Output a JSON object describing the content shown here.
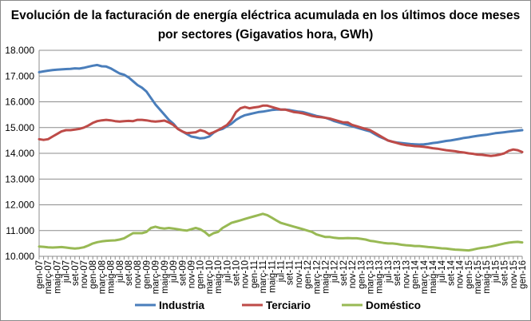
{
  "chart_data": {
    "type": "line",
    "title": "Evolución de la facturación de energía eléctrica acumulada en los últimos doce meses por sectores (Gigavatios hora, GWh)",
    "xlabel": "",
    "ylabel": "",
    "ylim": [
      10000,
      18000
    ],
    "yticks": [
      10000,
      11000,
      12000,
      13000,
      14000,
      15000,
      16000,
      17000,
      18000
    ],
    "ytick_labels": [
      "10.000",
      "11.000",
      "12.000",
      "13.000",
      "14.000",
      "15.000",
      "16.000",
      "17.000",
      "18.000"
    ],
    "grid": true,
    "legend_position": "bottom",
    "x": [
      "gen-07",
      "febr-07",
      "març-07",
      "abr-07",
      "maig-07",
      "juny-07",
      "jul-07",
      "ag-07",
      "set-07",
      "oct-07",
      "nov-07",
      "des-07",
      "gen-08",
      "febr-08",
      "març-08",
      "abr-08",
      "maig-08",
      "juny-08",
      "jul-08",
      "ag-08",
      "set-08",
      "oct-08",
      "nov-08",
      "des-08",
      "gen-09",
      "febr-09",
      "març-09",
      "abr-09",
      "maig-09",
      "juny-09",
      "jul-09",
      "ag-09",
      "set-09",
      "oct-09",
      "nov-09",
      "des-09",
      "gen-10",
      "febr-10",
      "març-10",
      "abr-10",
      "maig-10",
      "juny-10",
      "jul-10",
      "ag-10",
      "set-10",
      "oct-10",
      "nov-10",
      "des-10",
      "gen-11",
      "febr-11",
      "març-11",
      "abr-11",
      "maig-11",
      "juny-11",
      "jul-11",
      "ag-11",
      "set-11",
      "oct-11",
      "nov-11",
      "des-11",
      "gen-12",
      "febr-12",
      "març-12",
      "abr-12",
      "maig-12",
      "juny-12",
      "jul-12",
      "ag-12",
      "set-12",
      "oct-12",
      "nov-12",
      "des-12",
      "gen-13",
      "febr-13",
      "març-13",
      "abr-13",
      "maig-13",
      "juny-13",
      "jul-13",
      "ag-13",
      "set-13",
      "oct-13",
      "nov-13",
      "des-13",
      "gen-14",
      "febr-14",
      "març-14",
      "abr-14",
      "maig-14",
      "juny-14",
      "jul-14",
      "ag-14",
      "set-14",
      "oct-14",
      "nov-14",
      "des-14",
      "gen-15",
      "febr-15",
      "març-15",
      "abr-15",
      "maig-15",
      "juny-15",
      "jul-15",
      "ag-15",
      "set-15",
      "oct-15",
      "nov-15",
      "des-15",
      "gen-16"
    ],
    "x_tick_labels": [
      "gen-07",
      "març-07",
      "maig-07",
      "jul-07",
      "set-07",
      "nov-07",
      "gen-08",
      "març-08",
      "maig-08",
      "jul-08",
      "set-08",
      "nov-08",
      "gen-09",
      "març-09",
      "maig-09",
      "jul-09",
      "set-09",
      "nov-09",
      "gen-10",
      "març-10",
      "maig-10",
      "jul-10",
      "set-10",
      "nov-10",
      "gen-11",
      "març-11",
      "maig-11",
      "jul-11",
      "set-11",
      "nov-11",
      "gen-12",
      "març-12",
      "maig-12",
      "jul-12",
      "set-12",
      "nov-12",
      "gen-13",
      "març-13",
      "maig-13",
      "jul-13",
      "set-13",
      "nov-13",
      "gen-14",
      "març-14",
      "maig-14",
      "jul-14",
      "set-14",
      "nov-14",
      "gen-15",
      "març-15",
      "maig-15",
      "jul-15",
      "set-15",
      "nov-15",
      "gen-16"
    ],
    "series": [
      {
        "name": "Industria",
        "color": "#4a7ebb",
        "values": [
          17150,
          17180,
          17210,
          17230,
          17250,
          17260,
          17270,
          17280,
          17300,
          17290,
          17320,
          17360,
          17400,
          17430,
          17380,
          17370,
          17300,
          17200,
          17100,
          17050,
          16950,
          16800,
          16650,
          16550,
          16400,
          16150,
          15900,
          15700,
          15500,
          15300,
          15150,
          14950,
          14850,
          14750,
          14650,
          14620,
          14580,
          14600,
          14650,
          14800,
          14900,
          14950,
          15050,
          15150,
          15300,
          15400,
          15480,
          15520,
          15560,
          15600,
          15620,
          15650,
          15680,
          15700,
          15700,
          15700,
          15680,
          15650,
          15620,
          15600,
          15550,
          15500,
          15450,
          15420,
          15380,
          15320,
          15250,
          15200,
          15150,
          15100,
          15050,
          15000,
          14950,
          14900,
          14850,
          14750,
          14650,
          14580,
          14500,
          14450,
          14420,
          14400,
          14380,
          14360,
          14350,
          14340,
          14350,
          14370,
          14400,
          14420,
          14450,
          14480,
          14500,
          14530,
          14560,
          14600,
          14620,
          14650,
          14680,
          14700,
          14720,
          14750,
          14780,
          14800,
          14820,
          14840,
          14860,
          14880,
          14900
        ]
      },
      {
        "name": "Terciario",
        "color": "#be4b48",
        "values": [
          14550,
          14520,
          14550,
          14650,
          14750,
          14850,
          14900,
          14900,
          14920,
          14950,
          15000,
          15080,
          15180,
          15250,
          15280,
          15300,
          15280,
          15250,
          15230,
          15250,
          15260,
          15250,
          15300,
          15300,
          15280,
          15250,
          15230,
          15250,
          15270,
          15200,
          15100,
          14950,
          14850,
          14780,
          14800,
          14820,
          14900,
          14850,
          14750,
          14820,
          14900,
          15000,
          15100,
          15300,
          15600,
          15750,
          15800,
          15750,
          15780,
          15800,
          15850,
          15850,
          15800,
          15750,
          15700,
          15700,
          15650,
          15600,
          15580,
          15550,
          15500,
          15450,
          15420,
          15400,
          15380,
          15350,
          15300,
          15250,
          15200,
          15200,
          15100,
          15050,
          15000,
          14950,
          14900,
          14800,
          14700,
          14600,
          14500,
          14450,
          14400,
          14350,
          14320,
          14300,
          14280,
          14270,
          14250,
          14230,
          14200,
          14180,
          14150,
          14120,
          14100,
          14080,
          14050,
          14030,
          14000,
          13980,
          13950,
          13940,
          13920,
          13900,
          13920,
          13950,
          14000,
          14100,
          14150,
          14120,
          14050
        ]
      },
      {
        "name": "Doméstico",
        "color": "#98b954",
        "values": [
          10380,
          10370,
          10350,
          10340,
          10350,
          10360,
          10340,
          10320,
          10300,
          10320,
          10350,
          10420,
          10500,
          10550,
          10580,
          10600,
          10610,
          10620,
          10650,
          10700,
          10800,
          10900,
          10900,
          10900,
          10950,
          11100,
          11150,
          11100,
          11080,
          11100,
          11080,
          11050,
          11020,
          11000,
          11050,
          11100,
          11050,
          10950,
          10800,
          10900,
          10950,
          11100,
          11200,
          11300,
          11350,
          11400,
          11450,
          11500,
          11550,
          11600,
          11650,
          11600,
          11500,
          11400,
          11300,
          11250,
          11200,
          11150,
          11100,
          11050,
          11000,
          10950,
          10850,
          10800,
          10750,
          10750,
          10720,
          10700,
          10700,
          10710,
          10700,
          10700,
          10680,
          10650,
          10600,
          10580,
          10550,
          10520,
          10500,
          10500,
          10480,
          10450,
          10430,
          10420,
          10400,
          10400,
          10380,
          10360,
          10350,
          10330,
          10310,
          10300,
          10280,
          10260,
          10250,
          10240,
          10230,
          10260,
          10300,
          10330,
          10350,
          10380,
          10420,
          10460,
          10500,
          10530,
          10550,
          10560,
          10540
        ]
      }
    ]
  }
}
